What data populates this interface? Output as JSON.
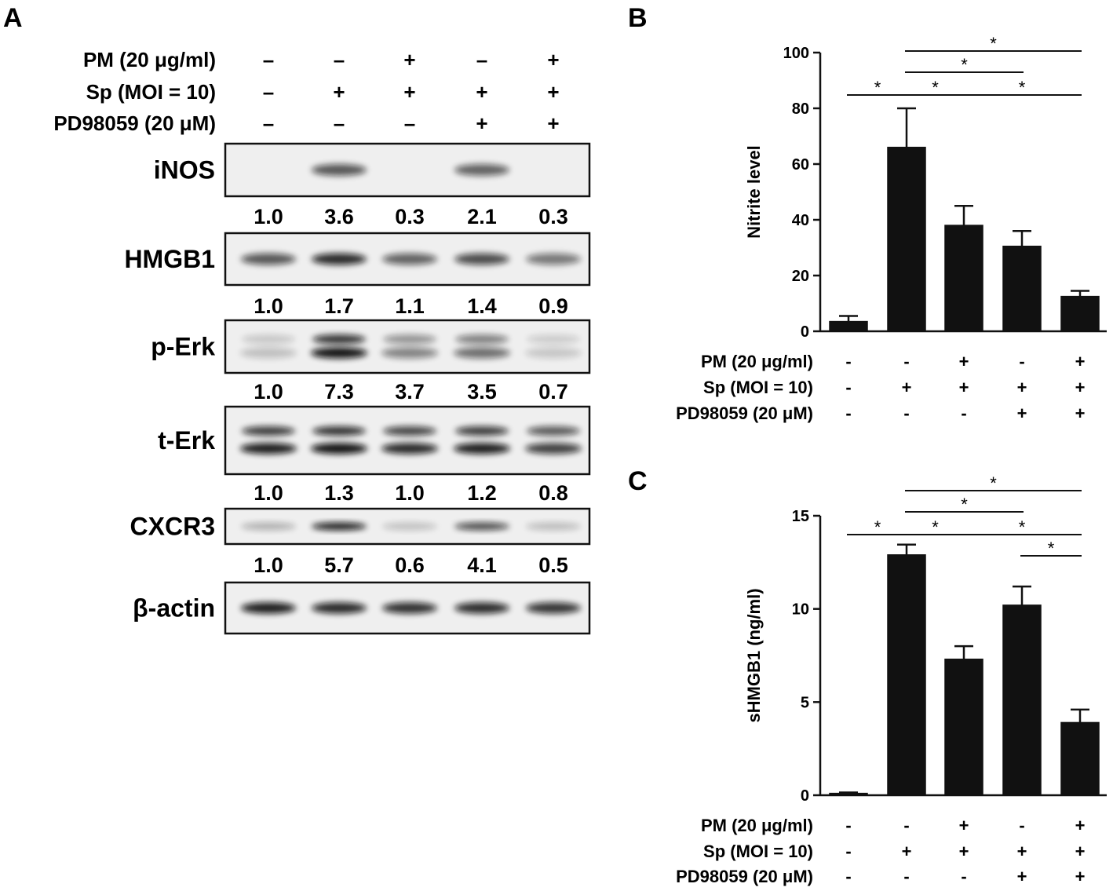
{
  "panels": {
    "A": {
      "letter": "A",
      "conditions": [
        {
          "label": "PM (20 μg/ml)",
          "signs": [
            "–",
            "–",
            "+",
            "–",
            "+"
          ]
        },
        {
          "label": "Sp (MOI = 10)",
          "signs": [
            "–",
            "+",
            "+",
            "+",
            "+"
          ]
        },
        {
          "label": "PD98059 (20 μM)",
          "signs": [
            "–",
            "–",
            "–",
            "+",
            "+"
          ]
        }
      ],
      "blots": [
        {
          "label": "iNOS",
          "band_intensity": [
            0.0,
            0.55,
            0.0,
            0.5,
            0.0
          ],
          "double": false,
          "quant": [
            "1.0",
            "3.6",
            "0.3",
            "2.1",
            "0.3"
          ]
        },
        {
          "label": "HMGB1",
          "band_intensity": [
            0.55,
            0.75,
            0.5,
            0.6,
            0.4
          ],
          "double": false,
          "quant": [
            "1.0",
            "1.7",
            "1.1",
            "1.4",
            "0.9"
          ]
        },
        {
          "label": "p-Erk",
          "band_intensity": [
            0.08,
            0.85,
            0.35,
            0.45,
            0.05
          ],
          "double": true,
          "quant": [
            "1.0",
            "7.3",
            "3.7",
            "3.5",
            "0.7"
          ]
        },
        {
          "label": "t-Erk",
          "band_intensity": [
            0.8,
            0.85,
            0.75,
            0.8,
            0.65
          ],
          "double": true,
          "quant": [
            "1.0",
            "1.3",
            "1.0",
            "1.2",
            "0.8"
          ]
        },
        {
          "label": "CXCR3",
          "band_intensity": [
            0.15,
            0.8,
            0.08,
            0.6,
            0.1
          ],
          "double": false,
          "quant": [
            "1.0",
            "5.7",
            "0.6",
            "4.1",
            "0.5"
          ]
        },
        {
          "label": "β-actin",
          "band_intensity": [
            0.8,
            0.75,
            0.72,
            0.74,
            0.7
          ],
          "double": false,
          "quant": null
        }
      ]
    },
    "B": {
      "letter": "B"
    },
    "C": {
      "letter": "C"
    },
    "chart_conditions": [
      {
        "label": "PM (20 μg/ml)",
        "signs": [
          "-",
          "-",
          "+",
          "-",
          "+"
        ]
      },
      {
        "label": "Sp (MOI = 10)",
        "signs": [
          "-",
          "+",
          "+",
          "+",
          "+"
        ]
      },
      {
        "label": "PD98059 (20 μM)",
        "signs": [
          "-",
          "-",
          "-",
          "+",
          "+"
        ]
      }
    ]
  },
  "chart_data": [
    {
      "type": "bar",
      "panel": "B",
      "ylabel": "Nitrite level",
      "ylim": [
        0,
        100
      ],
      "yticks": [
        0,
        20,
        40,
        60,
        80,
        100
      ],
      "categories": [
        "",
        "",
        "",
        "",
        ""
      ],
      "values": [
        3.5,
        66,
        38,
        30.5,
        12.5
      ],
      "errors": [
        2,
        14,
        7,
        5.5,
        2
      ],
      "color": "#111111",
      "significance": [
        {
          "from": 0,
          "to": 1,
          "label": "*"
        },
        {
          "from": 1,
          "to": 2,
          "label": "*"
        },
        {
          "from": 2,
          "to": 4,
          "label": "*"
        },
        {
          "from": 1,
          "to": 3,
          "label": "*"
        },
        {
          "from": 1,
          "to": 4,
          "label": "*"
        }
      ]
    },
    {
      "type": "bar",
      "panel": "C",
      "ylabel": "sHMGB1 (ng/ml)",
      "ylim": [
        0,
        15
      ],
      "yticks": [
        0,
        5,
        10,
        15
      ],
      "categories": [
        "",
        "",
        "",
        "",
        ""
      ],
      "values": [
        0.1,
        12.9,
        7.3,
        10.2,
        3.9
      ],
      "errors": [
        0.05,
        0.55,
        0.7,
        1.0,
        0.7
      ],
      "color": "#111111",
      "significance": [
        {
          "from": 0,
          "to": 1,
          "label": "*"
        },
        {
          "from": 1,
          "to": 2,
          "label": "*"
        },
        {
          "from": 2,
          "to": 4,
          "label": "*"
        },
        {
          "from": 1,
          "to": 3,
          "label": "*"
        },
        {
          "from": 1,
          "to": 4,
          "label": "*"
        },
        {
          "from": 3,
          "to": 4,
          "label": "*"
        }
      ]
    }
  ]
}
